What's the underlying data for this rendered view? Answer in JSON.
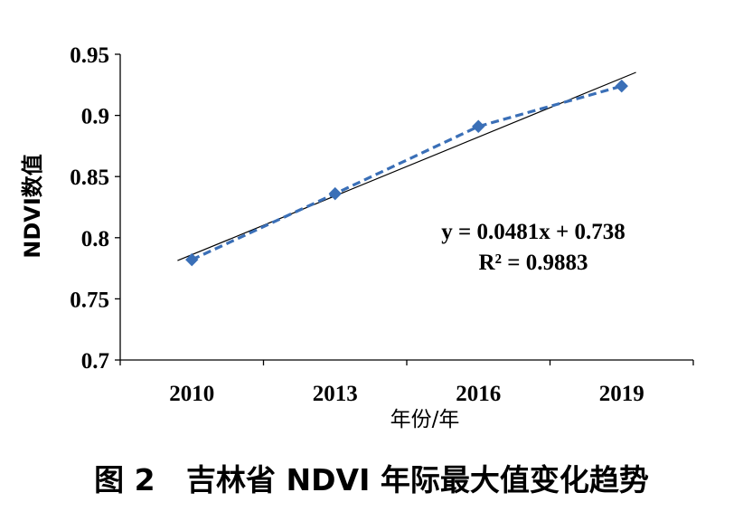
{
  "caption": "图 2   吉林省 NDVI 年际最大值变化趋势",
  "chart_data": {
    "type": "line",
    "xlabel": "年份/年",
    "ylabel": "NDVI数值",
    "categories": [
      "2010",
      "2013",
      "2016",
      "2019"
    ],
    "x_ticks": [
      "2010",
      "2013",
      "2016",
      "2019"
    ],
    "y_ticks": [
      "0.7",
      "0.75",
      "0.8",
      "0.85",
      "0.9",
      "0.95"
    ],
    "ylim": [
      0.7,
      0.95
    ],
    "grid": false,
    "series": [
      {
        "values": [
          0.782,
          0.836,
          0.891,
          0.924
        ],
        "style": "dashed",
        "marker": "diamond",
        "color": "#3a6fb7"
      }
    ],
    "trendline": {
      "slope": 0.0481,
      "intercept": 0.738,
      "color": "#000000"
    },
    "annotations": [
      "y = 0.0481x + 0.738",
      "R² = 0.9883"
    ]
  }
}
